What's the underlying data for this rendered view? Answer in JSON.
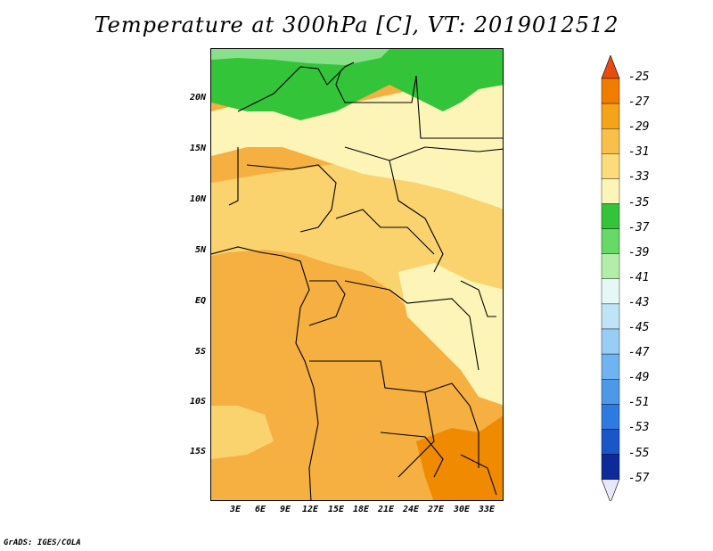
{
  "title": "Temperature at 300hPa [C], VT: 2019012512",
  "credit": "GrADS: IGES/COLA",
  "map": {
    "lat_labels": [
      "20N",
      "15N",
      "10N",
      "5N",
      "EQ",
      "5S",
      "10S",
      "15S"
    ],
    "lon_labels": [
      "3E",
      "6E",
      "9E",
      "12E",
      "15E",
      "18E",
      "21E",
      "24E",
      "27E",
      "30E",
      "33E"
    ]
  },
  "colorbar": {
    "labels": [
      "-25",
      "-27",
      "-29",
      "-31",
      "-33",
      "-35",
      "-37",
      "-39",
      "-41",
      "-43",
      "-45",
      "-47",
      "-49",
      "-51",
      "-53",
      "-55",
      "-57"
    ],
    "colors": [
      "#e84b10",
      "#f07c00",
      "#f5a318",
      "#f8c04a",
      "#fbdb7a",
      "#fdf5b8",
      "#33c43a",
      "#66d966",
      "#b2eeaa",
      "#e6f8f5",
      "#bfe4f5",
      "#98cdf5",
      "#6fb4f0",
      "#4e98e8",
      "#2d7ae0",
      "#1a56c8",
      "#0c2a9a",
      "#060a60"
    ]
  },
  "colors": {
    "orange_dark": "#f08a00",
    "orange": "#f5b041",
    "light_orange": "#fad26e",
    "pale_yellow": "#fdf5b8",
    "green": "#33c43a",
    "light_green": "#8ae08a"
  }
}
